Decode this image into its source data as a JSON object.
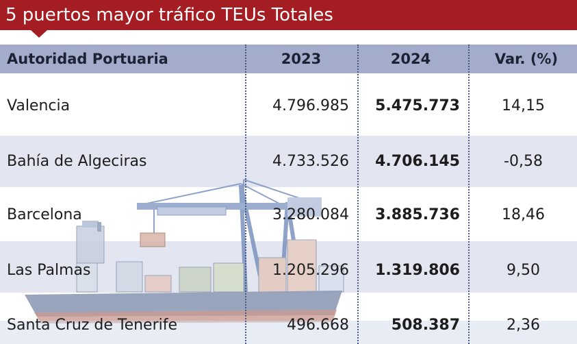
{
  "title": "5 puertos mayor tráfico TEUs Totales",
  "colors": {
    "title_bg": "#a31d23",
    "header_bg": "#a3acca",
    "band_bg": "#e3e6f0"
  },
  "table": {
    "headers": [
      "Autoridad Portuaria",
      "2023",
      "2024",
      "Var. (%)"
    ],
    "rows": [
      {
        "port": "Valencia",
        "y2023": "4.796.985",
        "y2024": "5.475.773",
        "var": "14,15"
      },
      {
        "port": "Bahía de Algeciras",
        "y2023": "4.733.526",
        "y2024": "4.706.145",
        "var": "-0,58"
      },
      {
        "port": "Barcelona",
        "y2023": "3.280.084",
        "y2024": "3.885.736",
        "var": "18,46"
      },
      {
        "port": "Las Palmas",
        "y2023": "1.205.296",
        "y2024": "1.319.806",
        "var": "9,50"
      },
      {
        "port": "Santa Cruz de Tenerife",
        "y2023": "496.668",
        "y2024": "508.387",
        "var": "2,36"
      }
    ]
  }
}
